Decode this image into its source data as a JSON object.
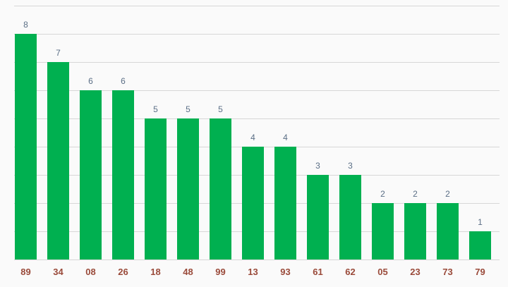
{
  "chart_data": {
    "type": "bar",
    "categories": [
      "89",
      "34",
      "08",
      "26",
      "18",
      "48",
      "99",
      "13",
      "93",
      "61",
      "62",
      "05",
      "23",
      "73",
      "79"
    ],
    "values": [
      8,
      7,
      6,
      6,
      5,
      5,
      5,
      4,
      4,
      3,
      3,
      2,
      2,
      2,
      1
    ],
    "title": "",
    "xlabel": "",
    "ylabel": "",
    "ylim": [
      0,
      9
    ],
    "grid": true,
    "data_labels": true,
    "colors": {
      "bar": "#00b050",
      "grid": "#d7d7d7",
      "value_label": "#5b6f86",
      "category_label": "#9a4a3a",
      "background": "#fafafa"
    }
  }
}
